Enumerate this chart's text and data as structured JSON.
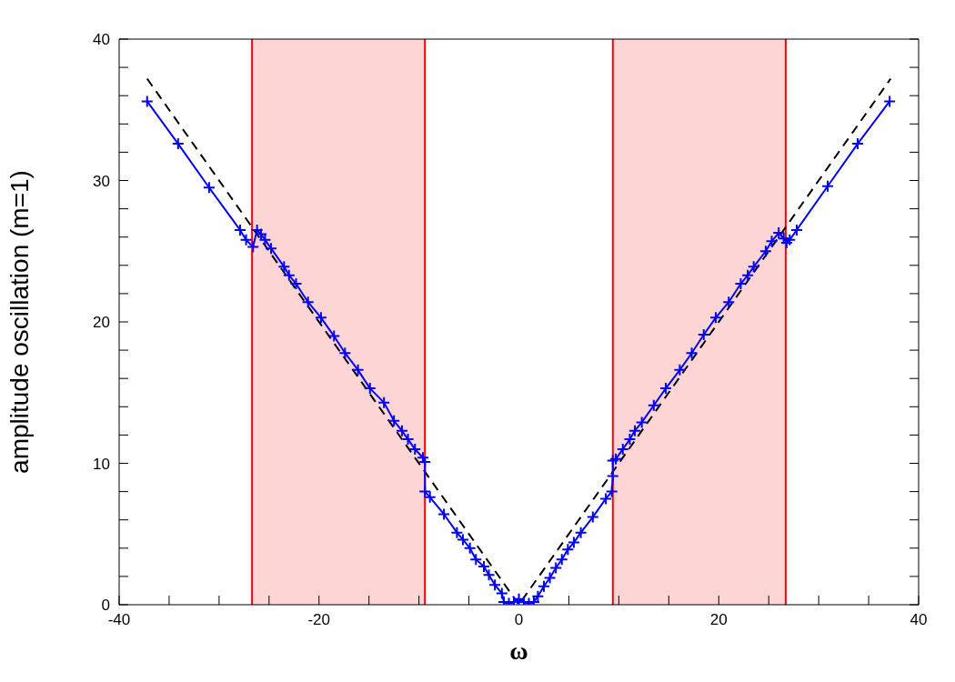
{
  "chart_data": {
    "type": "line",
    "xlabel": "ω",
    "ylabel": "amplitude oscillation (m=1)",
    "xlim": [
      -40,
      40
    ],
    "ylim": [
      0,
      40
    ],
    "xticks": [
      -40,
      {
        "value": -35,
        "label": null
      },
      {
        "value": -30,
        "label": null
      },
      {
        "value": -25,
        "label": null
      },
      -20,
      {
        "value": -15,
        "label": null
      },
      {
        "value": -10,
        "label": null
      },
      {
        "value": -5,
        "label": null
      },
      0,
      {
        "value": 5,
        "label": null
      },
      {
        "value": 10,
        "label": null
      },
      {
        "value": 15,
        "label": null
      },
      20,
      {
        "value": 25,
        "label": null
      },
      {
        "value": 30,
        "label": null
      },
      {
        "value": 35,
        "label": null
      },
      40
    ],
    "yticks": [
      0,
      {
        "value": 2,
        "label": null
      },
      {
        "value": 4,
        "label": null
      },
      {
        "value": 6,
        "label": null
      },
      {
        "value": 8,
        "label": null
      },
      10,
      {
        "value": 12,
        "label": null
      },
      {
        "value": 14,
        "label": null
      },
      {
        "value": 16,
        "label": null
      },
      {
        "value": 18,
        "label": null
      },
      20,
      {
        "value": 22,
        "label": null
      },
      {
        "value": 24,
        "label": null
      },
      {
        "value": 26,
        "label": null
      },
      {
        "value": 28,
        "label": null
      },
      30,
      {
        "value": 32,
        "label": null
      },
      {
        "value": 34,
        "label": null
      },
      {
        "value": 36,
        "label": null
      },
      {
        "value": 38,
        "label": null
      },
      40
    ],
    "grid": false,
    "legend": false,
    "series": [
      {
        "color": "#000000",
        "line_style": "dashed",
        "marker": "none",
        "x": [
          -37.2,
          0,
          37.2
        ],
        "values": [
          37.2,
          0,
          37.2
        ]
      },
      {
        "color": "#0000ff",
        "line_style": "solid",
        "marker": "cross",
        "x": [
          -37.2,
          -34.1,
          -31.0,
          -27.9,
          -27.3,
          -26.6,
          -26.2,
          -25.8,
          -25.4,
          -24.8,
          -23.5,
          -23.0,
          -22.3,
          -21.1,
          -19.8,
          -18.5,
          -17.4,
          -16.1,
          -14.9,
          -13.5,
          -12.5,
          -11.7,
          -11.1,
          -10.4,
          -9.6,
          -9.4,
          -9.4,
          -8.9,
          -7.5,
          -6.2,
          -5.6,
          -4.9,
          -4.3,
          -3.5,
          -3.0,
          -2.4,
          -1.7,
          -1.5,
          -1.0,
          -0.5,
          0,
          0.5,
          1.0,
          1.5,
          1.9,
          2.5,
          3.1,
          3.7,
          4.3,
          4.9,
          5.5,
          6.2,
          7.4,
          8.7,
          9.3,
          9.4,
          9.4,
          9.7,
          10.4,
          11.1,
          11.6,
          12.3,
          13.5,
          14.7,
          16.1,
          17.3,
          18.5,
          19.7,
          21.0,
          22.2,
          22.9,
          23.5,
          24.7,
          25.3,
          26.0,
          26.5,
          26.8,
          27.1,
          27.8,
          30.9,
          33.9,
          37.1
        ],
        "values": [
          35.6,
          32.6,
          29.5,
          26.5,
          25.8,
          25.3,
          26.5,
          26.2,
          25.8,
          25.2,
          23.9,
          23.3,
          22.7,
          21.4,
          20.3,
          19.0,
          17.8,
          16.6,
          15.3,
          14.3,
          13.0,
          12.3,
          11.7,
          11.0,
          10.4,
          10.1,
          8.0,
          7.6,
          6.4,
          5.1,
          4.6,
          4.0,
          3.2,
          2.7,
          2.1,
          1.4,
          0.8,
          0.2,
          0.1,
          0.2,
          0.4,
          0.2,
          0.1,
          0.2,
          0.6,
          1.3,
          1.9,
          2.6,
          3.2,
          3.9,
          4.4,
          5.1,
          6.2,
          7.5,
          8.0,
          9.1,
          10.2,
          10.3,
          11.0,
          11.7,
          12.3,
          12.9,
          14.1,
          15.3,
          16.6,
          17.8,
          19.1,
          20.3,
          21.4,
          22.7,
          23.3,
          23.9,
          25.0,
          25.7,
          26.3,
          25.9,
          25.6,
          25.8,
          26.5,
          29.6,
          32.6,
          35.6
        ]
      }
    ],
    "bands": [
      {
        "axis": "x",
        "from": -26.7,
        "to": -9.4,
        "color": "#fdd5d5"
      },
      {
        "axis": "x",
        "from": 9.4,
        "to": 26.7,
        "color": "#fdd5d5"
      }
    ],
    "ref_lines": [
      {
        "axis": "x",
        "value": -26.7,
        "color": "#ff0000"
      },
      {
        "axis": "x",
        "value": -9.4,
        "color": "#ff0000"
      },
      {
        "axis": "x",
        "value": 9.4,
        "color": "#ff0000"
      },
      {
        "axis": "x",
        "value": 26.7,
        "color": "#ff0000"
      }
    ]
  }
}
